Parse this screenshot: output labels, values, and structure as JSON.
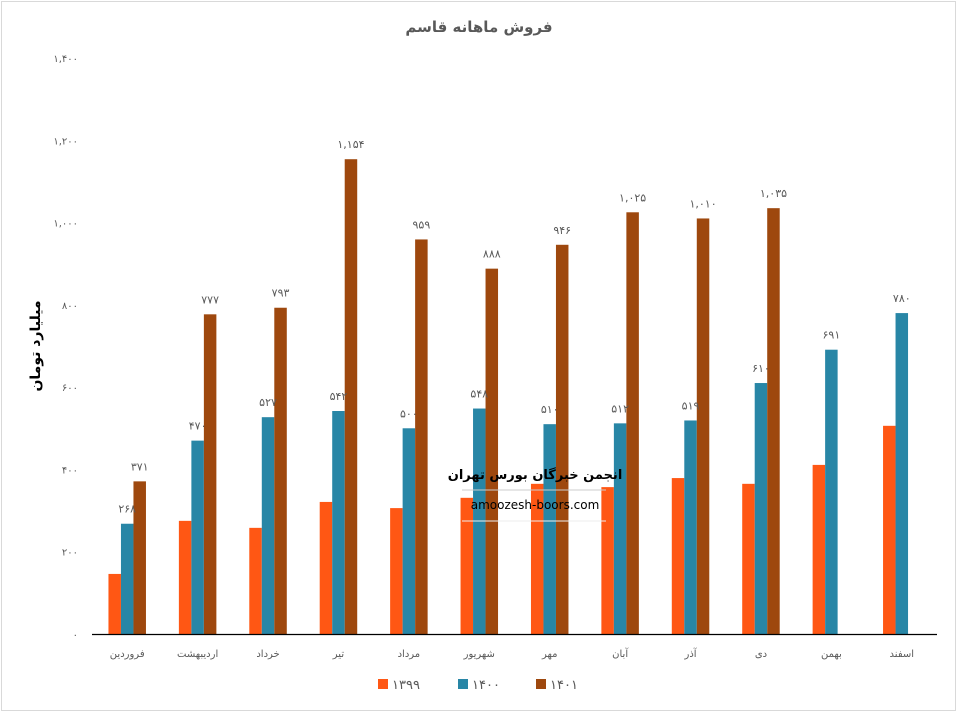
{
  "chart_data": {
    "type": "bar",
    "title": "فروش ماهانه قاسم",
    "xlabel": "",
    "ylabel": "میلیارد تومان",
    "ylim": [
      0,
      1400
    ],
    "yticks": [
      0,
      200,
      400,
      600,
      800,
      1000,
      1200,
      1400
    ],
    "ytick_labels": [
      "۰",
      "۲۰۰",
      "۴۰۰",
      "۶۰۰",
      "۸۰۰",
      "۱,۰۰۰",
      "۱,۲۰۰",
      "۱,۴۰۰"
    ],
    "grid": false,
    "legend_position": "bottom",
    "categories": [
      "فروردین",
      "اردیبهشت",
      "خرداد",
      "تیر",
      "مرداد",
      "شهریور",
      "مهر",
      "آبان",
      "آذر",
      "دی",
      "بهمن",
      "اسفند"
    ],
    "series": [
      {
        "name": "۱۳۹۹",
        "color": "#FF5714",
        "values": [
          146,
          275,
          258,
          321,
          306,
          331,
          365,
          357,
          379,
          365,
          411,
          506
        ],
        "labels": null
      },
      {
        "name": "۱۴۰۰",
        "color": "#2886A6",
        "values": [
          268,
          470,
          527,
          542,
          500,
          548,
          510,
          512,
          519,
          610,
          691,
          780
        ],
        "labels": [
          "۲۶۸",
          "۴۷۰",
          "۵۲۷",
          "۵۴۲",
          "۵۰۰",
          "۵۴۸",
          "۵۱۰",
          "۵۱۲",
          "۵۱۹",
          "۶۱۰",
          "۶۹۱",
          "۷۸۰"
        ]
      },
      {
        "name": "۱۴۰۱",
        "color": "#9E480E",
        "values": [
          371,
          777,
          793,
          1154,
          959,
          888,
          946,
          1025,
          1010,
          1035,
          null,
          null
        ],
        "labels": [
          "۳۷۱",
          "۷۷۷",
          "۷۹۳",
          "۱,۱۵۴",
          "۹۵۹",
          "۸۸۸",
          "۹۴۶",
          "۱,۰۲۵",
          "۱,۰۱۰",
          "۱,۰۳۵",
          null,
          null
        ]
      }
    ]
  },
  "watermark": {
    "line1": "انجمن خبرگان بورس تهران",
    "line2": "amoozesh-boors.com"
  }
}
